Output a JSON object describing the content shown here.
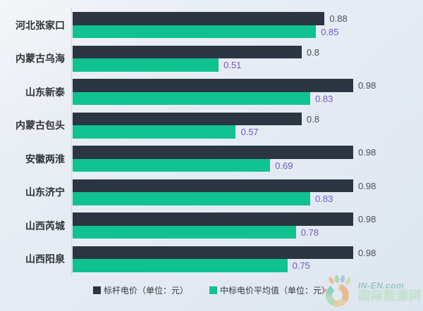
{
  "chart_data": {
    "type": "bar",
    "orientation": "horizontal",
    "title": "",
    "xlabel": "",
    "ylabel": "",
    "xlim": [
      0,
      0.98
    ],
    "grid": false,
    "legend_position": "bottom",
    "categories": [
      "河北张家口",
      "内蒙古乌海",
      "山东新泰",
      "内蒙古包头",
      "安徽两淮",
      "山东济宁",
      "山西芮城",
      "山西阳泉"
    ],
    "series": [
      {
        "name": "标杆电价（单位：元）",
        "color": "#2c3542",
        "value_label_color": "#4a4f57",
        "values": [
          0.88,
          0.8,
          0.98,
          0.8,
          0.98,
          0.98,
          0.98,
          0.98
        ]
      },
      {
        "name": "中标电价平均值（单位：元）",
        "color": "#10c290",
        "value_label_color": "#7159c6",
        "values": [
          0.85,
          0.51,
          0.83,
          0.57,
          0.69,
          0.83,
          0.78,
          0.75
        ]
      }
    ]
  },
  "watermark": {
    "site_name": "IN-EN.com",
    "site_name_cn": "国际能源网",
    "logo_icon": "in-en-energy-flower-swirl-logo"
  }
}
